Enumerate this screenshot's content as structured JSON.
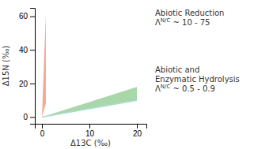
{
  "chart_data": {
    "type": "area",
    "xlabel": "Δ13C (‰)",
    "ylabel": "Δ15N (‰)",
    "xlim": [
      -1.5,
      22
    ],
    "ylim": [
      -4,
      65
    ],
    "xticks": [
      0,
      10,
      20
    ],
    "yticks": [
      0,
      20,
      40,
      60
    ],
    "grid": false,
    "series": [
      {
        "type": "area",
        "color": "#f5a898",
        "x": [
          0,
          0.82,
          0.82,
          0
        ],
        "values": [
          0,
          61.5,
          8.2,
          0
        ]
      },
      {
        "type": "area",
        "color": "#8ec98e",
        "x": [
          0,
          20,
          20,
          0
        ],
        "values": [
          0,
          18,
          10,
          0
        ]
      },
      {
        "type": "line",
        "color": "#a8dcd8",
        "x": [
          0,
          20
        ],
        "values": [
          0,
          10
        ]
      }
    ],
    "annotations": [
      [
        "Abiotic Reduction",
        [
          "Λ",
          "N/C",
          " ~ 10 - 75"
        ]
      ],
      [
        "Abiotic and",
        "Enzymatic Hydrolysis",
        [
          "Λ",
          "N/C",
          " ~ 0.5 - 0.9"
        ]
      ]
    ]
  }
}
